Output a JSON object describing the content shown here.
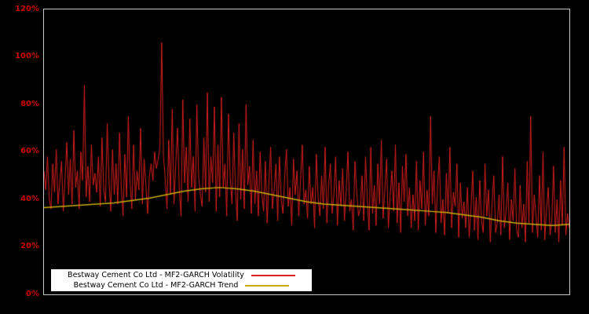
{
  "colors": {
    "background": "#000000",
    "plot_border": "#c8c8c8",
    "axis_label": "#cc0000",
    "legend_background": "#ffffff",
    "legend_text": "#000000",
    "volatility_line": "#d91f1f",
    "trend_line": "#c9ae00"
  },
  "chart_data": {
    "type": "line",
    "title": "",
    "y_unit": "%",
    "ylim": [
      0,
      120
    ],
    "grid": false,
    "legend_position": "bottom-left",
    "y_tick_labels": [
      "120%",
      "100%",
      "80%",
      "60%",
      "40%",
      "20%",
      "0%"
    ],
    "series": [
      {
        "name": "Bestway Cement Co Ltd - MF2-GARCH Volatility",
        "color": "#d91f1f",
        "values": [
          52,
          44,
          58,
          40,
          36,
          55,
          43,
          61,
          38,
          47,
          56,
          35,
          49,
          64,
          42,
          57,
          38,
          69,
          45,
          52,
          36,
          60,
          48,
          88,
          41,
          54,
          39,
          63,
          46,
          51,
          43,
          58,
          37,
          66,
          44,
          39,
          72,
          48,
          35,
          61,
          42,
          55,
          38,
          68,
          45,
          33,
          59,
          41,
          75,
          47,
          36,
          63,
          40,
          52,
          44,
          70,
          38,
          57,
          46,
          34,
          50,
          55,
          48,
          60,
          53,
          57,
          62,
          106,
          58,
          49,
          36,
          65,
          42,
          78,
          38,
          55,
          70,
          44,
          33,
          82,
          47,
          62,
          39,
          74,
          45,
          58,
          35,
          80,
          50,
          42,
          37,
          66,
          43,
          85,
          39,
          58,
          47,
          79,
          35,
          63,
          41,
          83,
          45,
          55,
          33,
          76,
          49,
          38,
          68,
          44,
          31,
          72,
          40,
          61,
          36,
          80,
          46,
          54,
          34,
          65,
          38,
          52,
          33,
          60,
          42,
          35,
          56,
          30,
          47,
          62,
          36,
          44,
          55,
          31,
          58,
          40,
          34,
          50,
          61,
          37,
          45,
          29,
          57,
          42,
          52,
          33,
          48,
          63,
          38,
          44,
          32,
          54,
          38,
          45,
          28,
          59,
          41,
          33,
          50,
          36,
          62,
          30,
          46,
          55,
          34,
          42,
          58,
          29,
          48,
          37,
          53,
          31,
          44,
          60,
          35,
          40,
          27,
          56,
          43,
          33,
          36,
          50,
          31,
          58,
          40,
          27,
          62,
          34,
          46,
          29,
          55,
          38,
          65,
          32,
          44,
          57,
          28,
          41,
          52,
          35,
          63,
          30,
          47,
          26,
          54,
          39,
          59,
          33,
          45,
          28,
          42,
          31,
          56,
          27,
          48,
          36,
          60,
          29,
          44,
          33,
          75,
          38,
          52,
          26,
          46,
          58,
          30,
          40,
          25,
          51,
          34,
          62,
          28,
          43,
          37,
          55,
          24,
          47,
          32,
          39,
          28,
          45,
          24,
          36,
          52,
          27,
          41,
          23,
          48,
          31,
          26,
          55,
          33,
          44,
          22,
          38,
          50,
          26,
          30,
          42,
          25,
          58,
          28,
          35,
          47,
          23,
          40,
          31,
          53,
          27,
          24,
          46,
          28,
          38,
          22,
          56,
          30,
          75,
          26,
          42,
          33,
          24,
          50,
          27,
          60,
          23,
          36,
          45,
          25,
          31,
          54,
          26,
          40,
          22,
          48,
          29,
          62,
          25,
          34,
          28
        ]
      },
      {
        "name": "Bestway Cement Co Ltd - MF2-GARCH Trend",
        "color": "#c9ae00",
        "values": [
          36.5,
          37,
          37.5,
          38,
          38.5,
          39.5,
          40.5,
          42,
          43.5,
          44.5,
          45,
          44.5,
          43.5,
          42,
          40.5,
          39,
          38,
          37.5,
          37,
          36.5,
          36,
          35.5,
          35,
          34.5,
          33.5,
          32.5,
          31,
          30,
          29.5,
          29,
          29.5
        ]
      }
    ]
  }
}
